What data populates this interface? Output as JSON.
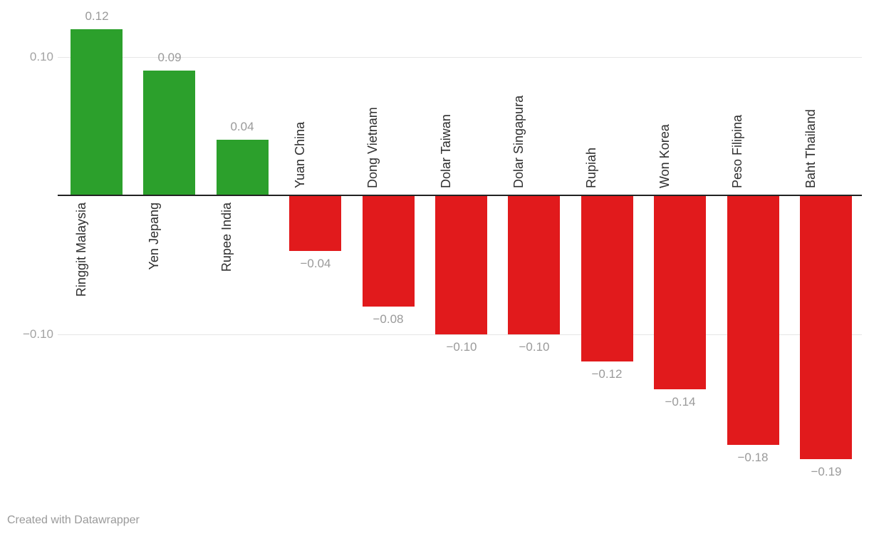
{
  "chart_data": {
    "type": "bar",
    "title": "",
    "xlabel": "",
    "ylabel": "",
    "categories": [
      "Ringgit Malaysia",
      "Yen Jepang",
      "Rupee India",
      "Yuan China",
      "Dong Vietnam",
      "Dolar Taiwan",
      "Dolar Singapura",
      "Rupiah",
      "Won Korea",
      "Peso Filipina",
      "Baht Thailand"
    ],
    "values": [
      0.12,
      0.09,
      0.04,
      -0.04,
      -0.08,
      -0.1,
      -0.1,
      -0.12,
      -0.14,
      -0.18,
      -0.19
    ],
    "value_labels": [
      "0.12",
      "0.09",
      "0.04",
      "−0.04",
      "−0.08",
      "−0.10",
      "−0.10",
      "−0.12",
      "−0.14",
      "−0.18",
      "−0.19"
    ],
    "yticks": [
      {
        "value": 0.1,
        "label": "0.10"
      },
      {
        "value": -0.1,
        "label": "−0.10"
      }
    ],
    "ylim": [
      -0.22,
      0.145
    ],
    "grid": true,
    "legend": "none",
    "colors": {
      "positive_bar": "#2ca02c",
      "negative_bar": "#e11a1c",
      "axis_line": "#222222",
      "gridline": "#e6e6e6",
      "value_label": "#9a9a9a",
      "category_label": "#2e2e2e",
      "tick_label": "#a3a3a3"
    }
  },
  "footer": {
    "credit": "Created with Datawrapper"
  }
}
